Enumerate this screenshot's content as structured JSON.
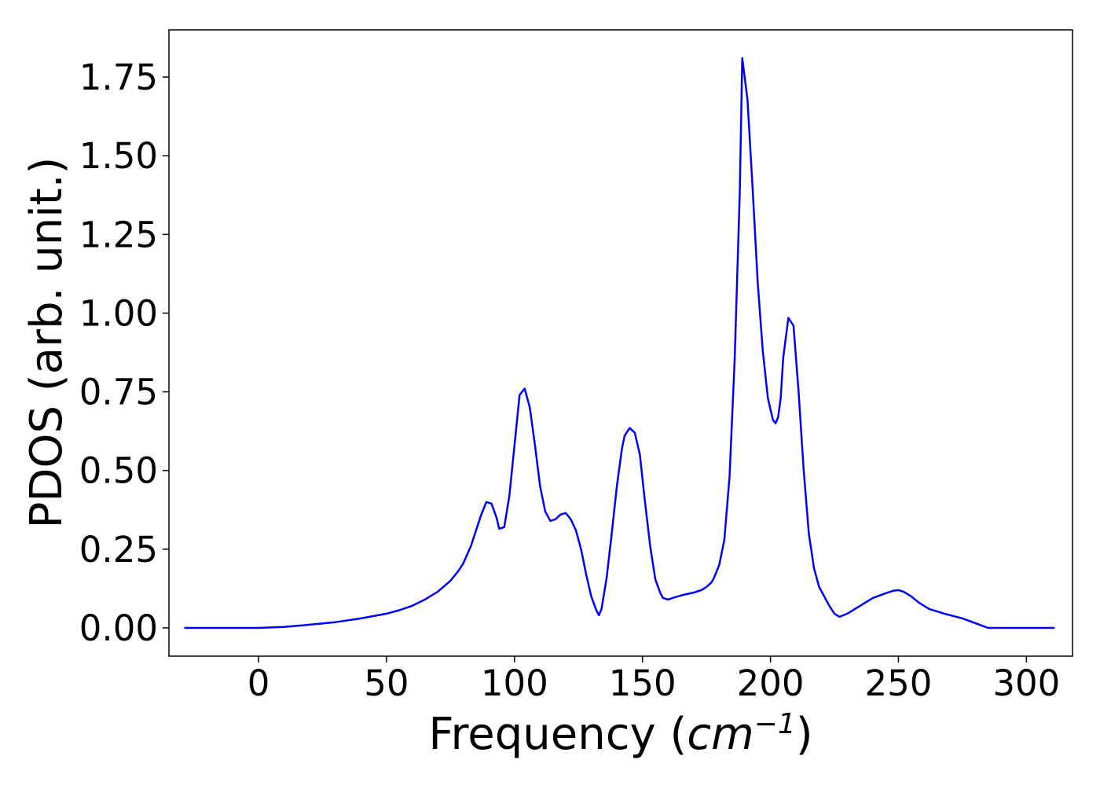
{
  "chart_data": {
    "type": "line",
    "title": "",
    "xlabel_prefix": "Frequency (",
    "xlabel_var": "cm",
    "xlabel_exp": "−1",
    "xlabel_suffix": ")",
    "ylabel": "PDOS (arb. unit.)",
    "xlim": [
      -35,
      318
    ],
    "ylim": [
      -0.09,
      1.9
    ],
    "xticks": [
      0,
      50,
      100,
      150,
      200,
      250,
      300
    ],
    "xtick_labels": [
      "0",
      "50",
      "100",
      "150",
      "200",
      "250",
      "300"
    ],
    "yticks": [
      0.0,
      0.25,
      0.5,
      0.75,
      1.0,
      1.25,
      1.5,
      1.75
    ],
    "ytick_labels": [
      "0.00",
      "0.25",
      "0.50",
      "0.75",
      "1.00",
      "1.25",
      "1.50",
      "1.75"
    ],
    "grid": false,
    "series": [
      {
        "color": "#0000ff",
        "x": [
          -29,
          -10,
          0,
          10,
          20,
          30,
          40,
          50,
          55,
          60,
          65,
          70,
          75,
          78,
          80,
          83,
          85,
          87,
          89,
          91,
          93,
          94,
          96,
          98,
          100,
          102,
          104,
          106,
          108,
          110,
          112,
          114,
          116,
          118,
          120,
          122,
          124,
          126,
          128,
          130,
          132,
          133,
          134,
          136,
          138,
          140,
          142,
          143,
          145,
          147,
          149,
          151,
          153,
          155,
          157,
          158,
          160,
          163,
          166,
          170,
          173,
          175,
          177,
          178,
          180,
          182,
          184,
          186,
          188,
          189,
          191,
          193,
          195,
          197,
          199,
          201,
          202,
          203,
          204,
          205,
          207,
          209,
          211,
          213,
          215,
          217,
          219,
          221,
          223,
          225,
          227,
          230,
          235,
          240,
          245,
          248,
          250,
          252,
          255,
          258,
          262,
          268,
          275,
          280,
          285,
          290,
          300,
          311
        ],
        "y": [
          0.0,
          0.0,
          0.0,
          0.003,
          0.01,
          0.018,
          0.03,
          0.045,
          0.056,
          0.07,
          0.09,
          0.115,
          0.15,
          0.18,
          0.205,
          0.26,
          0.31,
          0.36,
          0.4,
          0.395,
          0.35,
          0.315,
          0.32,
          0.42,
          0.58,
          0.74,
          0.76,
          0.7,
          0.58,
          0.45,
          0.37,
          0.34,
          0.345,
          0.36,
          0.365,
          0.345,
          0.31,
          0.25,
          0.17,
          0.1,
          0.055,
          0.04,
          0.06,
          0.16,
          0.3,
          0.45,
          0.57,
          0.61,
          0.635,
          0.62,
          0.55,
          0.4,
          0.26,
          0.155,
          0.11,
          0.095,
          0.09,
          0.098,
          0.105,
          0.112,
          0.12,
          0.13,
          0.145,
          0.16,
          0.2,
          0.28,
          0.48,
          0.85,
          1.38,
          1.81,
          1.68,
          1.4,
          1.1,
          0.88,
          0.73,
          0.66,
          0.65,
          0.67,
          0.73,
          0.86,
          0.985,
          0.96,
          0.75,
          0.5,
          0.3,
          0.19,
          0.13,
          0.1,
          0.07,
          0.045,
          0.035,
          0.045,
          0.07,
          0.095,
          0.11,
          0.118,
          0.12,
          0.115,
          0.1,
          0.08,
          0.06,
          0.045,
          0.03,
          0.015,
          0.0,
          0.0,
          0.0,
          0.0
        ]
      }
    ]
  }
}
